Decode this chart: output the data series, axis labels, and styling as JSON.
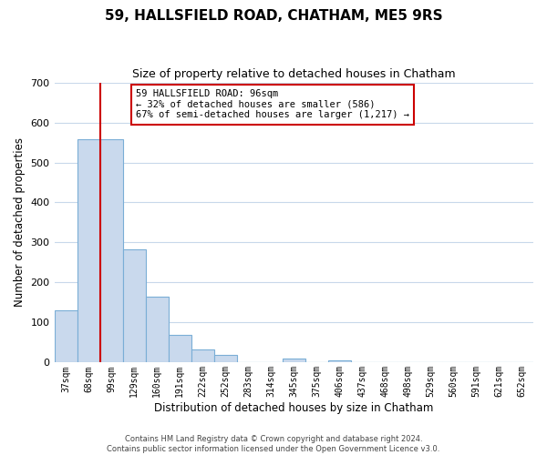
{
  "title": "59, HALLSFIELD ROAD, CHATHAM, ME5 9RS",
  "subtitle": "Size of property relative to detached houses in Chatham",
  "xlabel": "Distribution of detached houses by size in Chatham",
  "ylabel": "Number of detached properties",
  "bin_labels": [
    "37sqm",
    "68sqm",
    "99sqm",
    "129sqm",
    "160sqm",
    "191sqm",
    "222sqm",
    "252sqm",
    "283sqm",
    "314sqm",
    "345sqm",
    "375sqm",
    "406sqm",
    "437sqm",
    "468sqm",
    "498sqm",
    "529sqm",
    "560sqm",
    "591sqm",
    "621sqm",
    "652sqm"
  ],
  "bar_values": [
    130,
    557,
    557,
    283,
    165,
    70,
    33,
    19,
    0,
    0,
    11,
    0,
    5,
    0,
    0,
    0,
    0,
    0,
    0,
    0,
    0
  ],
  "bar_color": "#c9d9ed",
  "bar_edgecolor": "#7aaed6",
  "vline_color": "#cc0000",
  "vline_x_index": 2,
  "annotation_box_text": "59 HALLSFIELD ROAD: 96sqm\n← 32% of detached houses are smaller (586)\n67% of semi-detached houses are larger (1,217) →",
  "annotation_box_color": "#cc0000",
  "ylim": [
    0,
    700
  ],
  "yticks": [
    0,
    100,
    200,
    300,
    400,
    500,
    600,
    700
  ],
  "footer_line1": "Contains HM Land Registry data © Crown copyright and database right 2024.",
  "footer_line2": "Contains public sector information licensed under the Open Government Licence v3.0.",
  "background_color": "#ffffff",
  "grid_color": "#c8d8ea"
}
